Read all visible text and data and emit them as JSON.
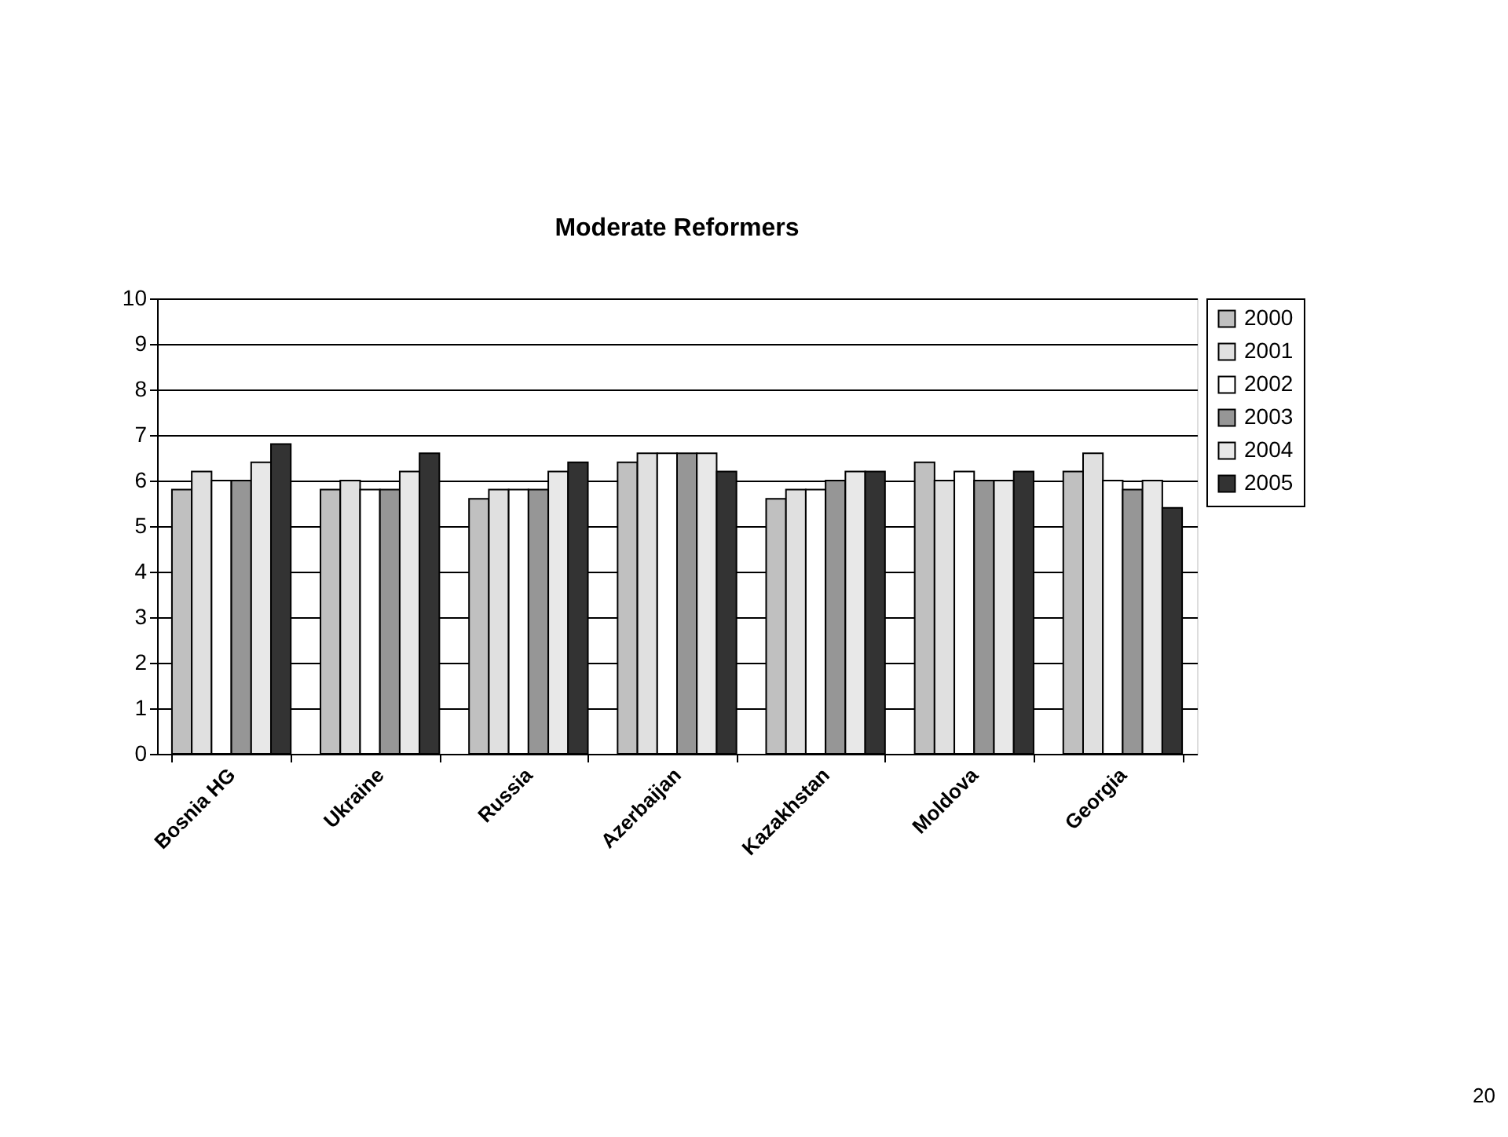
{
  "chart_data": {
    "type": "bar",
    "title": "Moderate Reformers",
    "categories": [
      "Bosnia HG",
      "Ukraine",
      "Russia",
      "Azerbaijan",
      "Kazakhstan",
      "Moldova",
      "Georgia"
    ],
    "series": [
      {
        "name": "2000",
        "color": "#c0c0c0",
        "values": [
          5.8,
          5.8,
          5.6,
          6.4,
          5.6,
          6.4,
          6.2
        ]
      },
      {
        "name": "2001",
        "color": "#e0e0e0",
        "values": [
          6.2,
          6.0,
          5.8,
          6.6,
          5.8,
          6.0,
          6.6
        ]
      },
      {
        "name": "2002",
        "color": "#ffffff",
        "values": [
          6.0,
          5.8,
          5.8,
          6.6,
          5.8,
          6.2,
          6.0
        ]
      },
      {
        "name": "2003",
        "color": "#969696",
        "values": [
          6.0,
          5.8,
          5.8,
          6.6,
          6.0,
          6.0,
          5.8
        ]
      },
      {
        "name": "2004",
        "color": "#e8e8e8",
        "values": [
          6.4,
          6.2,
          6.2,
          6.6,
          6.2,
          6.0,
          6.0
        ]
      },
      {
        "name": "2005",
        "color": "#333333",
        "values": [
          6.8,
          6.6,
          6.4,
          6.2,
          6.2,
          6.2,
          5.4
        ]
      }
    ],
    "ylim": [
      0,
      10
    ],
    "yticks": [
      0,
      1,
      2,
      3,
      4,
      5,
      6,
      7,
      8,
      9,
      10
    ],
    "grid": "y",
    "legend": "right",
    "annotations": [
      "20"
    ]
  }
}
